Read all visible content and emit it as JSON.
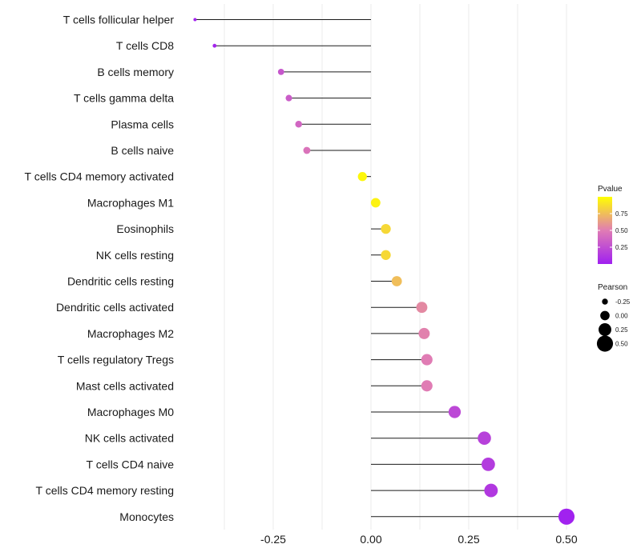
{
  "chart_data": {
    "type": "lollipop",
    "title": "",
    "xlabel": "",
    "ylabel": "",
    "xlim": [
      -0.45,
      0.52
    ],
    "xticks": [
      -0.25,
      0.0,
      0.25,
      0.5
    ],
    "xtick_labels": [
      "-0.25",
      "0.00",
      "0.25",
      "0.50"
    ],
    "baseline": 0.0,
    "grid": true,
    "categories": [
      "T cells follicular helper",
      "T cells CD8",
      "B cells memory",
      "T cells gamma delta",
      "Plasma cells",
      "B cells naive",
      "T cells CD4 memory activated",
      "Macrophages M1",
      "Eosinophils",
      "NK cells resting",
      "Dendritic cells resting",
      "Dendritic cells activated",
      "Macrophages M2",
      "T cells regulatory  Tregs ",
      "Mast cells activated",
      "Macrophages M0",
      "NK cells activated",
      "T cells CD4 naive",
      "T cells CD4 memory resting",
      "Monocytes"
    ],
    "pearson": [
      -0.45,
      -0.4,
      -0.23,
      -0.21,
      -0.185,
      -0.164,
      -0.022,
      0.012,
      0.038,
      0.038,
      0.066,
      0.13,
      0.136,
      0.143,
      0.143,
      0.214,
      0.29,
      0.3,
      0.307,
      0.5
    ],
    "pvalue": [
      0.02,
      0.03,
      0.3,
      0.33,
      0.38,
      0.45,
      0.97,
      0.95,
      0.85,
      0.85,
      0.75,
      0.55,
      0.52,
      0.5,
      0.5,
      0.22,
      0.18,
      0.15,
      0.13,
      0.01
    ],
    "legend": {
      "position": "right",
      "color": {
        "title": "Pvalue",
        "ticks": [
          "0.75",
          "0.50",
          "0.25"
        ],
        "tick_values": [
          0.75,
          0.5,
          0.25
        ],
        "range": [
          0.0,
          1.0
        ],
        "low_color": "#a020f0",
        "mid_color": "#e07cb4",
        "high_color": "#ffff00"
      },
      "size": {
        "title": "Pearson",
        "labels": [
          "-0.25",
          "0.00",
          "0.25",
          "0.50"
        ],
        "values": [
          -0.25,
          0.0,
          0.25,
          0.5
        ]
      }
    }
  }
}
